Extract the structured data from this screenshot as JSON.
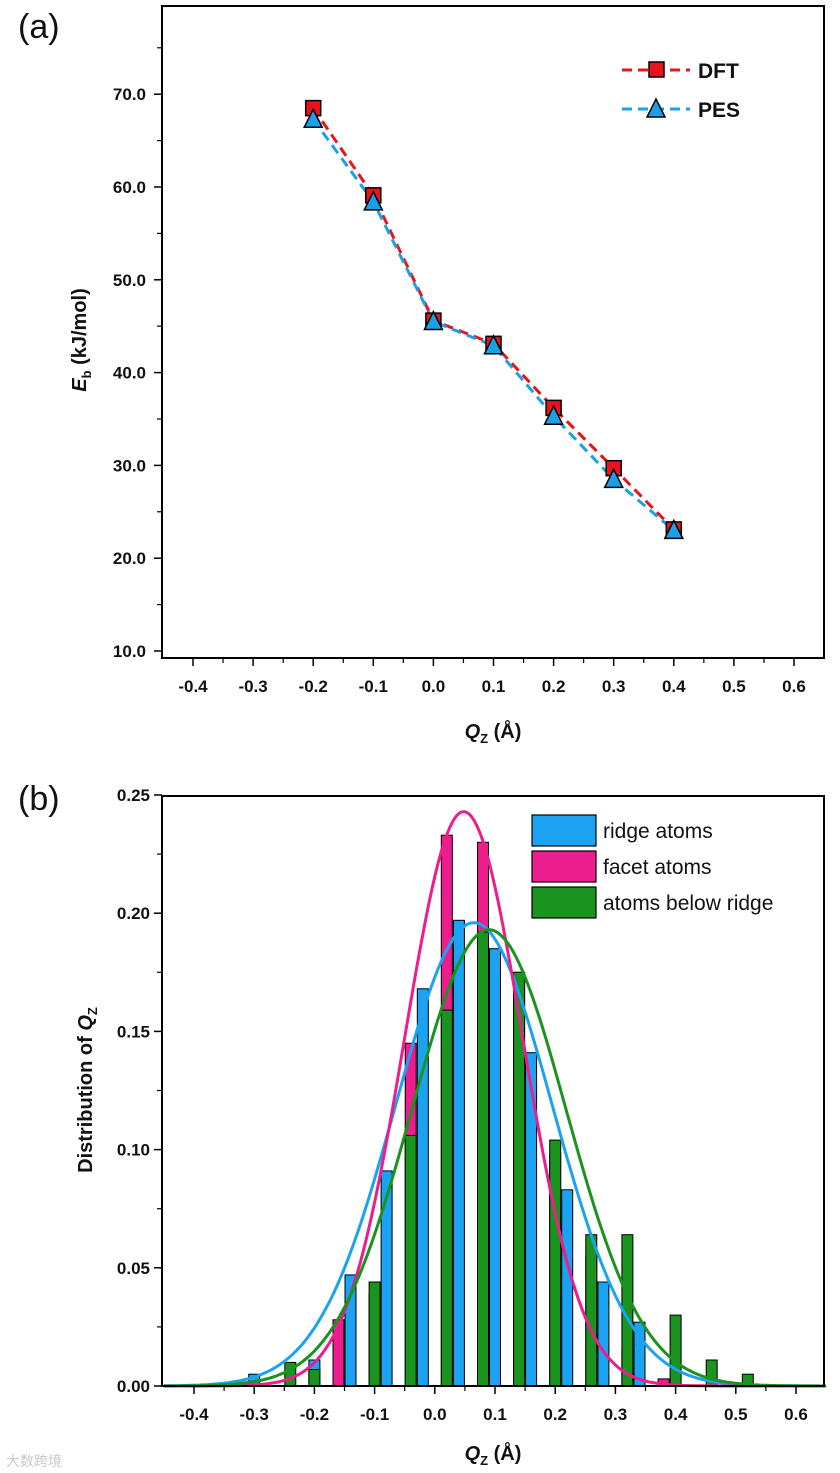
{
  "watermark": "大数跨境",
  "chart_data": [
    {
      "panel": "(a)",
      "type": "line",
      "xlabel_main": "Q",
      "xlabel_sub": "Z",
      "xlabel_unit": " (Å)",
      "ylabel_main": "E",
      "ylabel_sub": "b",
      "ylabel_unit": " (kJ/mol)",
      "xlim": [
        -0.45,
        0.65
      ],
      "ylim": [
        10,
        76
      ],
      "xticks": [
        "-0.4",
        "-0.3",
        "-0.2",
        "-0.1",
        "0.0",
        "0.1",
        "0.2",
        "0.3",
        "0.4",
        "0.5",
        "0.6"
      ],
      "yticks": [
        "10.0",
        "20.0",
        "30.0",
        "40.0",
        "50.0",
        "60.0",
        "70.0"
      ],
      "legend_position": "top-right",
      "x": [
        -0.2,
        -0.1,
        0.0,
        0.1,
        0.2,
        0.3,
        0.4
      ],
      "series": [
        {
          "name": "DFT",
          "marker": "square",
          "color": "#e8141b",
          "values": [
            68.5,
            59.1,
            45.6,
            43.1,
            36.2,
            29.7,
            23.1
          ]
        },
        {
          "name": "PES",
          "marker": "triangle",
          "color": "#1ba0e8",
          "values": [
            67.3,
            58.4,
            45.5,
            42.9,
            35.3,
            28.5,
            23.0
          ]
        }
      ]
    },
    {
      "panel": "(b)",
      "type": "bar",
      "xlabel_main": "Q",
      "xlabel_sub": "Z",
      "xlabel_unit": " (Å)",
      "ylabel_main": "Distribution of ",
      "ylabel_q": "Q",
      "ylabel_sub": "Z",
      "xlim": [
        -0.45,
        0.65
      ],
      "ylim": [
        0,
        0.25
      ],
      "xticks": [
        "-0.4",
        "-0.3",
        "-0.2",
        "-0.1",
        "0.0",
        "0.1",
        "0.2",
        "0.3",
        "0.4",
        "0.5",
        "0.6"
      ],
      "yticks": [
        "0.00",
        "0.05",
        "0.10",
        "0.15",
        "0.20",
        "0.25"
      ],
      "legend_position": "top-right",
      "series": [
        {
          "name": "ridge atoms",
          "color": "#1ba3f2",
          "bins": [
            -0.3,
            -0.2,
            -0.14,
            -0.08,
            -0.02,
            0.04,
            0.1,
            0.16,
            0.22,
            0.28,
            0.34
          ],
          "values": [
            0.005,
            0.011,
            0.047,
            0.091,
            0.168,
            0.197,
            0.185,
            0.141,
            0.083,
            0.044,
            0.027
          ],
          "fit": {
            "mu": 0.065,
            "sigma": 0.13,
            "peak": 0.196
          }
        },
        {
          "name": "facet atoms",
          "color": "#ec1d8c",
          "bins": [
            -0.16,
            -0.1,
            -0.04,
            0.02,
            0.08,
            0.14,
            0.2,
            0.26,
            0.32,
            0.38
          ],
          "values": [
            0.028,
            0.039,
            0.145,
            0.233,
            0.23,
            0.175,
            0.098,
            0.055,
            0.015,
            0.003
          ],
          "fit": {
            "mu": 0.048,
            "sigma": 0.098,
            "peak": 0.243
          }
        },
        {
          "name": "atoms below ridge",
          "color": "#1a931f",
          "bins": [
            -0.24,
            -0.2,
            -0.1,
            -0.04,
            0.02,
            0.08,
            0.14,
            0.2,
            0.26,
            0.32,
            0.4,
            0.46,
            0.52
          ],
          "values": [
            0.01,
            0.007,
            0.044,
            0.106,
            0.159,
            0.192,
            0.175,
            0.104,
            0.064,
            0.064,
            0.03,
            0.011,
            0.005
          ],
          "fit": {
            "mu": 0.09,
            "sigma": 0.128,
            "peak": 0.193
          }
        }
      ]
    }
  ]
}
